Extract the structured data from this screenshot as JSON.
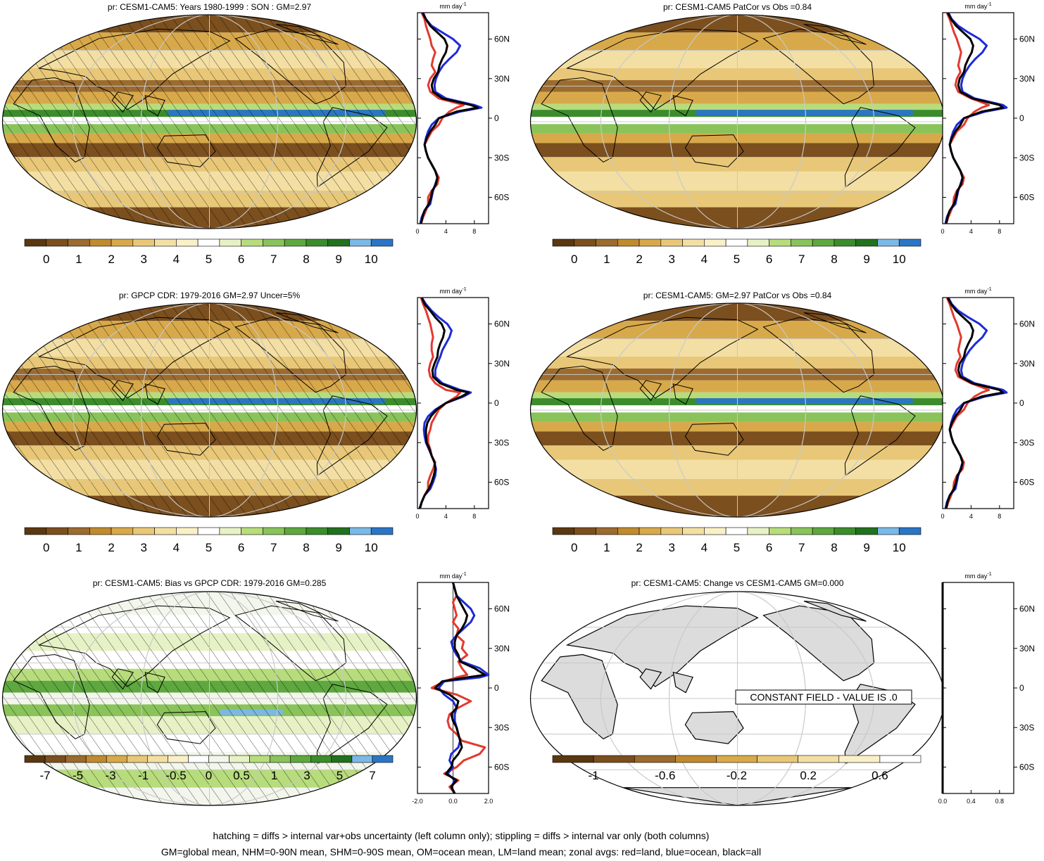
{
  "panels": [
    {
      "title": "pr: CESM1-CAM5: Years 1980-1999 : SON : GM=2.97",
      "map": "model",
      "hatch": true,
      "colorbar": "clim"
    },
    {
      "title": "pr: CESM1-CAM5 PatCor vs Obs =0.84",
      "map": "model",
      "hatch": false,
      "colorbar": "clim"
    },
    {
      "title": "pr: GPCP CDR: 1979-2016 GM=2.97 Uncer=5%",
      "map": "obs",
      "hatch": true,
      "colorbar": "clim"
    },
    {
      "title": "pr: CESM1-CAM5: GM=2.97 PatCor vs Obs =0.84",
      "map": "model",
      "hatch": false,
      "colorbar": "clim"
    },
    {
      "title": "pr: CESM1-CAM5: Bias vs GPCP CDR: 1979-2016  GM=0.285",
      "map": "bias",
      "hatch": true,
      "colorbar": "bias"
    },
    {
      "title": "pr: CESM1-CAM5: Change vs CESM1-CAM5 GM=0.000",
      "map": "constant",
      "hatch": false,
      "colorbar": "change"
    }
  ],
  "constant_field_label": "CONSTANT FIELD - VALUE IS .0",
  "zonal_unit": "mm day",
  "zonal_unit_exp": "-1",
  "colorbars": {
    "clim": {
      "labels": [
        "0",
        "1",
        "2",
        "3",
        "4",
        "5",
        "6",
        "7",
        "8",
        "9",
        "10"
      ],
      "colors": [
        "#5a3810",
        "#7b4f1e",
        "#9b6b2f",
        "#c08a30",
        "#d8a94a",
        "#e8c878",
        "#f3dfa4",
        "#faf0c8",
        "#ffffff",
        "#e6f2c6",
        "#b7dc7c",
        "#89c35a",
        "#5ea83f",
        "#3c8c2c",
        "#23701f",
        "#7ab8e6",
        "#2b76c4"
      ]
    },
    "bias": {
      "labels": [
        "-7",
        "-5",
        "-3",
        "-1",
        "-0.5",
        "0",
        "0.5",
        "1",
        "3",
        "5",
        "7"
      ],
      "colors": [
        "#5a3810",
        "#7b4f1e",
        "#9b6b2f",
        "#c08a30",
        "#d8a94a",
        "#e8c878",
        "#f3dfa4",
        "#faf0c8",
        "#ffffff",
        "#f3f6ec",
        "#e6f2c6",
        "#b7dc7c",
        "#89c35a",
        "#5ea83f",
        "#3c8c2c",
        "#23701f",
        "#7ab8e6",
        "#2b76c4"
      ]
    },
    "change": {
      "labels": [
        "-1",
        "-0.6",
        "-0.2",
        "0.2",
        "0.6"
      ],
      "colors": [
        "#5a3810",
        "#7b4f1e",
        "#9b6b2f",
        "#c08a30",
        "#d8a94a",
        "#e8c878",
        "#f3dfa4",
        "#faf0c8",
        "#ffffff"
      ]
    }
  },
  "palette": {
    "land": "#e23a2f",
    "ocean": "#1e2bd6",
    "all": "#000000",
    "map_gray": "#dcdcdc"
  },
  "footnotes": [
    "hatching = diffs > internal var+obs uncertainty (left column only); stippling = diffs > internal var only (both columns)",
    "GM=global mean, NHM=0-90N mean, SHM=0-90S mean, OM=ocean mean, LM=land mean; zonal avgs: red=land, blue=ocean, black=all"
  ],
  "chart_data": [
    {
      "type": "line",
      "panel": 1,
      "xlabel": "mm day-1",
      "ylabel": "",
      "xlim": [
        0,
        10
      ],
      "xticks": [
        0,
        4,
        8
      ],
      "ylim": [
        -80,
        80
      ],
      "yticks": [
        "60N",
        "30N",
        "0",
        "30S",
        "60S"
      ],
      "lat": [
        -80,
        -75,
        -70,
        -65,
        -60,
        -55,
        -50,
        -45,
        -40,
        -35,
        -30,
        -25,
        -20,
        -15,
        -10,
        -5,
        0,
        5,
        8,
        10,
        15,
        20,
        25,
        30,
        35,
        40,
        45,
        50,
        55,
        60,
        65,
        70,
        75,
        80
      ],
      "series": [
        {
          "values": [
            0.5,
            0.8,
            1.2,
            1.5,
            1.5,
            2.0,
            2.8,
            3.0,
            2.5,
            2.0,
            1.5,
            1.2,
            1.0,
            1.5,
            2.0,
            3.0,
            3.5,
            4.5,
            5.5,
            6.5,
            3.0,
            1.8,
            1.5,
            1.8,
            2.5,
            2.0,
            2.2,
            2.5,
            2.0,
            1.8,
            1.5,
            1.2,
            1.0,
            0.6
          ]
        },
        {
          "values": [
            0.4,
            0.6,
            1.0,
            1.8,
            2.0,
            2.2,
            2.5,
            2.8,
            2.5,
            2.0,
            1.5,
            1.2,
            1.0,
            1.2,
            1.5,
            2.0,
            3.0,
            6.0,
            9.0,
            8.0,
            4.0,
            2.5,
            2.4,
            2.6,
            3.0,
            3.6,
            4.5,
            5.5,
            6.0,
            5.0,
            3.5,
            2.0,
            1.2,
            0.8
          ]
        },
        {
          "values": [
            0.5,
            0.7,
            1.0,
            1.6,
            1.9,
            2.1,
            2.6,
            2.8,
            2.5,
            2.0,
            1.5,
            1.2,
            1.0,
            1.3,
            1.8,
            2.5,
            3.0,
            5.5,
            8.5,
            7.5,
            3.5,
            2.2,
            2.0,
            2.3,
            2.9,
            3.1,
            3.5,
            4.0,
            4.2,
            3.8,
            2.8,
            1.8,
            1.2,
            0.7
          ]
        }
      ]
    },
    {
      "type": "line",
      "panel": 2,
      "xlabel": "mm day-1",
      "ylabel": "",
      "xlim": [
        0,
        10
      ],
      "xticks": [
        0,
        4,
        8
      ],
      "ylim": [
        -80,
        80
      ],
      "yticks": [
        "60N",
        "30N",
        "0",
        "30S",
        "60S"
      ],
      "lat": [
        -80,
        -75,
        -70,
        -65,
        -60,
        -55,
        -50,
        -45,
        -40,
        -35,
        -30,
        -25,
        -20,
        -15,
        -10,
        -5,
        0,
        5,
        8,
        10,
        15,
        20,
        25,
        30,
        35,
        40,
        45,
        50,
        55,
        60,
        65,
        70,
        75,
        80
      ],
      "series": [
        {
          "values": [
            0.5,
            0.8,
            1.2,
            1.5,
            1.6,
            2.0,
            2.8,
            3.0,
            2.5,
            2.0,
            1.5,
            1.2,
            1.0,
            1.5,
            2.0,
            3.0,
            3.5,
            4.5,
            5.5,
            6.5,
            4.0,
            2.2,
            1.8,
            2.0,
            2.5,
            2.2,
            2.4,
            2.6,
            2.3,
            2.0,
            1.6,
            1.3,
            1.0,
            0.6
          ]
        },
        {
          "values": [
            0.4,
            0.6,
            1.0,
            1.8,
            2.0,
            2.2,
            2.5,
            2.8,
            2.5,
            2.0,
            1.5,
            1.2,
            1.0,
            1.2,
            1.5,
            2.0,
            3.0,
            6.0,
            9.0,
            8.5,
            4.5,
            2.8,
            2.6,
            2.8,
            3.2,
            3.8,
            4.6,
            5.6,
            6.2,
            5.2,
            3.6,
            2.2,
            1.3,
            0.8
          ]
        },
        {
          "values": [
            0.5,
            0.7,
            1.0,
            1.6,
            1.9,
            2.1,
            2.6,
            2.8,
            2.5,
            2.0,
            1.5,
            1.2,
            1.0,
            1.3,
            1.8,
            2.5,
            3.0,
            5.5,
            8.5,
            8.0,
            4.2,
            2.5,
            2.2,
            2.4,
            3.0,
            3.2,
            3.6,
            4.1,
            4.3,
            3.9,
            2.9,
            1.9,
            1.2,
            0.7
          ]
        }
      ]
    },
    {
      "type": "line",
      "panel": 3,
      "xlabel": "mm day-1",
      "ylabel": "",
      "xlim": [
        0,
        10
      ],
      "xticks": [
        0,
        4,
        8
      ],
      "ylim": [
        -80,
        80
      ],
      "yticks": [
        "60N",
        "30N",
        "0",
        "30S",
        "60S"
      ],
      "lat": [
        -80,
        -75,
        -70,
        -65,
        -60,
        -55,
        -50,
        -45,
        -40,
        -35,
        -30,
        -25,
        -20,
        -15,
        -10,
        -5,
        0,
        5,
        8,
        10,
        15,
        20,
        25,
        30,
        35,
        40,
        45,
        50,
        55,
        60,
        65,
        70,
        75,
        80
      ],
      "series": [
        {
          "values": [
            0.4,
            0.6,
            1.0,
            1.5,
            1.5,
            1.8,
            2.2,
            2.5,
            2.0,
            1.8,
            1.5,
            1.5,
            1.8,
            2.0,
            2.5,
            3.0,
            4.0,
            5.5,
            6.0,
            4.0,
            2.5,
            1.8,
            1.6,
            1.8,
            2.2,
            2.0,
            2.0,
            2.2,
            2.0,
            1.8,
            1.5,
            1.2,
            0.8,
            0.5
          ]
        },
        {
          "values": [
            0.3,
            0.6,
            1.0,
            1.8,
            2.2,
            2.5,
            2.6,
            2.4,
            2.0,
            1.6,
            1.2,
            1.0,
            0.9,
            1.0,
            1.5,
            2.5,
            4.0,
            6.5,
            7.5,
            6.0,
            3.5,
            2.5,
            2.5,
            2.8,
            3.2,
            3.5,
            4.0,
            4.5,
            4.8,
            4.2,
            3.0,
            2.0,
            1.2,
            0.6
          ]
        },
        {
          "values": [
            0.3,
            0.6,
            1.0,
            1.6,
            2.0,
            2.3,
            2.5,
            2.4,
            2.0,
            1.7,
            1.3,
            1.2,
            1.2,
            1.4,
            1.9,
            2.7,
            4.0,
            6.2,
            7.2,
            5.5,
            3.2,
            2.2,
            2.1,
            2.4,
            2.8,
            2.9,
            3.2,
            3.6,
            3.8,
            3.4,
            2.5,
            1.8,
            1.0,
            0.6
          ]
        }
      ]
    },
    {
      "type": "line",
      "panel": 4,
      "xlabel": "mm day-1",
      "ylabel": "",
      "xlim": [
        0,
        10
      ],
      "xticks": [
        0,
        4,
        8
      ],
      "ylim": [
        -80,
        80
      ],
      "yticks": [
        "60N",
        "30N",
        "0",
        "30S",
        "60S"
      ],
      "lat": [
        -80,
        -75,
        -70,
        -65,
        -60,
        -55,
        -50,
        -45,
        -40,
        -35,
        -30,
        -25,
        -20,
        -15,
        -10,
        -5,
        0,
        5,
        8,
        10,
        15,
        20,
        25,
        30,
        35,
        40,
        45,
        50,
        55,
        60,
        65,
        70,
        75,
        80
      ],
      "series": [
        {
          "values": [
            0.5,
            0.8,
            1.2,
            1.5,
            1.6,
            2.0,
            2.8,
            3.0,
            2.5,
            2.0,
            1.5,
            1.2,
            1.0,
            1.5,
            2.0,
            3.0,
            3.5,
            4.5,
            5.5,
            6.5,
            4.0,
            2.2,
            1.8,
            2.0,
            2.5,
            2.2,
            2.4,
            2.6,
            2.3,
            2.0,
            1.6,
            1.3,
            1.0,
            0.6
          ]
        },
        {
          "values": [
            0.4,
            0.6,
            1.0,
            1.8,
            2.0,
            2.2,
            2.5,
            2.8,
            2.5,
            2.0,
            1.5,
            1.2,
            1.0,
            1.2,
            1.5,
            2.0,
            3.0,
            6.0,
            9.0,
            8.5,
            4.5,
            2.8,
            2.6,
            2.8,
            3.2,
            3.8,
            4.6,
            5.6,
            6.2,
            5.2,
            3.6,
            2.2,
            1.3,
            0.8
          ]
        },
        {
          "values": [
            0.5,
            0.7,
            1.0,
            1.6,
            1.9,
            2.1,
            2.6,
            2.8,
            2.5,
            2.0,
            1.5,
            1.2,
            1.0,
            1.3,
            1.8,
            2.5,
            3.0,
            5.5,
            8.5,
            8.0,
            4.2,
            2.5,
            2.2,
            2.4,
            3.0,
            3.2,
            3.6,
            4.1,
            4.3,
            3.9,
            2.9,
            1.9,
            1.2,
            0.7
          ]
        }
      ]
    },
    {
      "type": "line",
      "panel": 5,
      "xlabel": "mm day-1",
      "ylabel": "",
      "xlim": [
        -2,
        2
      ],
      "xticks": [
        "-2.0",
        "0.0",
        "2.0"
      ],
      "ylim": [
        -80,
        80
      ],
      "yticks": [
        "60N",
        "30N",
        "0",
        "30S",
        "60S"
      ],
      "lat": [
        -80,
        -75,
        -70,
        -65,
        -60,
        -55,
        -50,
        -45,
        -40,
        -35,
        -30,
        -25,
        -20,
        -15,
        -10,
        -5,
        0,
        5,
        8,
        10,
        15,
        20,
        25,
        30,
        35,
        40,
        45,
        50,
        55,
        60,
        65,
        70,
        75,
        80
      ],
      "series": [
        {
          "values": [
            0.1,
            -0.2,
            0.3,
            -0.5,
            0.2,
            0.6,
            1.5,
            1.8,
            0.5,
            0.2,
            -0.2,
            -0.3,
            -0.2,
            0.3,
            1.0,
            0.2,
            -1.2,
            -0.5,
            0.2,
            0.8,
            0.5,
            0.3,
            0.8,
            0.5,
            0.6,
            0.2,
            0.3,
            0.0,
            0.2,
            0.1,
            0.0,
            0.2,
            0.1,
            0.0
          ]
        },
        {
          "values": [
            0.1,
            -0.1,
            0.1,
            -0.3,
            0.0,
            -0.2,
            -0.1,
            0.3,
            0.4,
            0.3,
            0.2,
            0.1,
            0.1,
            0.2,
            0.0,
            -0.5,
            -0.8,
            -0.5,
            1.5,
            2.2,
            1.5,
            0.5,
            0.2,
            0.0,
            -0.1,
            0.2,
            0.6,
            1.0,
            1.2,
            1.0,
            0.6,
            0.2,
            0.1,
            0.0
          ]
        },
        {
          "values": [
            0.1,
            -0.1,
            0.2,
            -0.4,
            -0.1,
            0.0,
            0.3,
            0.5,
            0.4,
            0.3,
            0.2,
            0.0,
            -0.1,
            0.2,
            0.3,
            -0.2,
            -1.0,
            -0.6,
            0.8,
            1.8,
            1.2,
            0.4,
            0.3,
            0.1,
            0.1,
            0.2,
            0.5,
            0.7,
            0.8,
            0.6,
            0.4,
            0.2,
            0.1,
            0.0
          ]
        }
      ]
    },
    {
      "type": "line",
      "panel": 6,
      "xlabel": "mm day-1",
      "ylabel": "",
      "xlim": [
        0,
        1
      ],
      "xticks": [
        "0.0",
        "0.4",
        "0.8"
      ],
      "ylim": [
        -80,
        80
      ],
      "yticks": [
        "60N",
        "30N",
        "0",
        "30S",
        "60S"
      ],
      "lat": [
        -80,
        80
      ],
      "series": [
        {
          "values": [
            0,
            0
          ]
        },
        {
          "values": [
            0,
            0
          ]
        },
        {
          "values": [
            0,
            0
          ]
        }
      ]
    }
  ]
}
